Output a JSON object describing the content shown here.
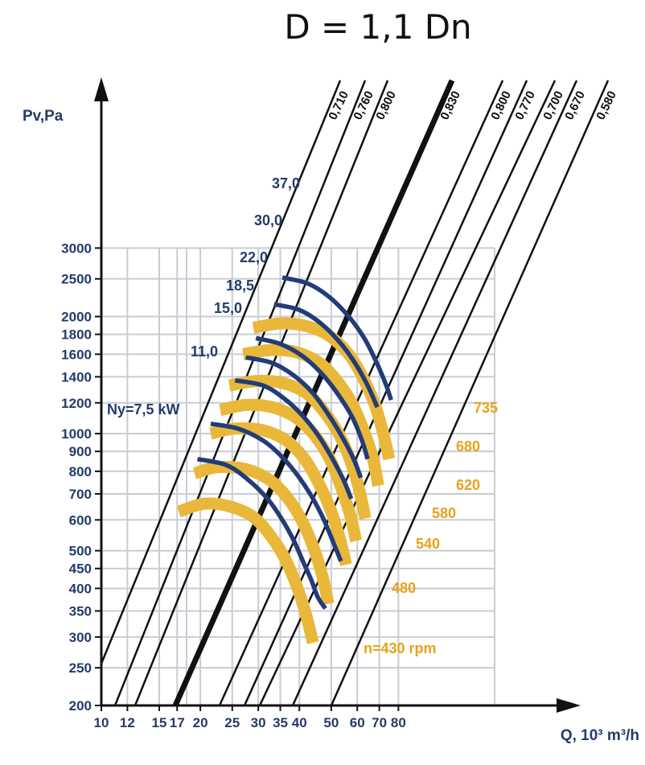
{
  "chart_data": {
    "type": "line",
    "title": "D = 1,1 Dn",
    "ylabel": "Pv,Pa",
    "xlabel": "Q, 10³ m³/h",
    "x_ticks": [
      "10",
      "12",
      "15",
      "17",
      "20",
      "25",
      "30",
      "35",
      "40",
      "50",
      "60",
      "70",
      "80"
    ],
    "x_tick_values": [
      10,
      12,
      15,
      17,
      20,
      25,
      30,
      35,
      40,
      50,
      60,
      70,
      80
    ],
    "y_ticks": [
      "3000",
      "2500",
      "2000",
      "1800",
      "1600",
      "1400",
      "1200",
      "1000",
      "900",
      "800",
      "700",
      "600",
      "500",
      "450",
      "400",
      "350",
      "300",
      "250",
      "200"
    ],
    "y_tick_values": [
      3000,
      2500,
      2000,
      1800,
      1600,
      1400,
      1200,
      1000,
      900,
      800,
      700,
      600,
      500,
      450,
      400,
      350,
      300,
      250,
      200
    ],
    "xlim": [
      10,
      90
    ],
    "ylim": [
      200,
      3000
    ],
    "scale": "log-log",
    "grid": true,
    "efficiency_lines": [
      {
        "label": "0,710",
        "bold": false
      },
      {
        "label": "0,760",
        "bold": false
      },
      {
        "label": "0,800",
        "bold": false
      },
      {
        "label": "0,830",
        "bold": true
      },
      {
        "label": "0,800",
        "bold": false
      },
      {
        "label": "0,770",
        "bold": false
      },
      {
        "label": "0,700",
        "bold": false
      },
      {
        "label": "0,670",
        "bold": false
      },
      {
        "label": "0,580",
        "bold": false
      }
    ],
    "speed_curves": [
      {
        "label": "n=430 rpm",
        "x": [
          17.2,
          20.5,
          24.5,
          29,
          33,
          36.5,
          39.5,
          42,
          44
        ],
        "y": [
          630,
          660,
          650,
          610,
          540,
          470,
          400,
          340,
          290
        ]
      },
      {
        "label": "480",
        "x": [
          19.2,
          22.5,
          27.5,
          32.5,
          37,
          41,
          44.5,
          47,
          49
        ],
        "y": [
          790,
          820,
          810,
          760,
          680,
          590,
          500,
          430,
          365
        ]
      },
      {
        "label": "540",
        "x": [
          21.5,
          25.5,
          31,
          36.5,
          41.5,
          46,
          50,
          53,
          55.5
        ],
        "y": [
          1000,
          1030,
          1020,
          960,
          860,
          740,
          630,
          540,
          460
        ]
      },
      {
        "label": "580",
        "x": [
          23,
          27.5,
          33,
          39,
          44.5,
          49.5,
          53.5,
          57,
          59.5
        ],
        "y": [
          1150,
          1185,
          1170,
          1100,
          990,
          860,
          730,
          620,
          530
        ]
      },
      {
        "label": "620",
        "x": [
          24.5,
          29.5,
          35.5,
          42,
          47.5,
          53,
          57.5,
          61,
          63.5
        ],
        "y": [
          1330,
          1365,
          1350,
          1270,
          1140,
          990,
          840,
          710,
          605
        ]
      },
      {
        "label": "680",
        "x": [
          27,
          32.5,
          39,
          46,
          52,
          58,
          63,
          67,
          69.5
        ],
        "y": [
          1600,
          1640,
          1620,
          1520,
          1370,
          1190,
          1010,
          860,
          735
        ]
      },
      {
        "label": "735",
        "x": [
          29,
          35,
          42,
          49.5,
          56.5,
          62.5,
          68,
          72,
          75
        ],
        "y": [
          1870,
          1920,
          1890,
          1780,
          1600,
          1390,
          1180,
          1000,
          860
        ]
      }
    ],
    "power_curves": [
      {
        "label": "Ny=7,5 kW",
        "x": [
          19.6,
          24,
          28,
          32,
          35.5,
          38.5,
          41,
          43.5,
          45.5,
          48
        ],
        "y": [
          860,
          830,
          760,
          680,
          600,
          530,
          470,
          420,
          380,
          355
        ]
      },
      {
        "label": "11,0",
        "x": [
          21.5,
          26,
          31,
          35.5,
          40,
          44,
          47.5,
          50.5,
          53.5
        ],
        "y": [
          1060,
          1030,
          960,
          870,
          770,
          680,
          600,
          530,
          470
        ]
      },
      {
        "label": "15,0",
        "x": [
          25.5,
          31,
          36,
          41,
          46,
          50.5,
          54.5,
          57.5
        ],
        "y": [
          1370,
          1330,
          1230,
          1110,
          980,
          860,
          760,
          680
        ]
      },
      {
        "label": "18,5",
        "x": [
          27.5,
          33,
          38.5,
          44,
          49,
          54,
          58.5,
          61.5
        ],
        "y": [
          1570,
          1520,
          1410,
          1270,
          1120,
          980,
          860,
          770
        ]
      },
      {
        "label": "22,0",
        "x": [
          29.5,
          35,
          41,
          47,
          52.5,
          58,
          62,
          64.5
        ],
        "y": [
          1760,
          1700,
          1580,
          1420,
          1260,
          1100,
          960,
          860
        ]
      },
      {
        "label": "30,0",
        "x": [
          33.5,
          40,
          46.5,
          53,
          59,
          64.5,
          69
        ],
        "y": [
          2150,
          2080,
          1920,
          1720,
          1520,
          1330,
          1170
        ]
      },
      {
        "label": "37,0",
        "x": [
          35.5,
          42.5,
          49.5,
          56.5,
          63,
          68.5,
          73.5,
          76
        ],
        "y": [
          2520,
          2430,
          2240,
          2000,
          1760,
          1530,
          1330,
          1220
        ]
      }
    ]
  }
}
